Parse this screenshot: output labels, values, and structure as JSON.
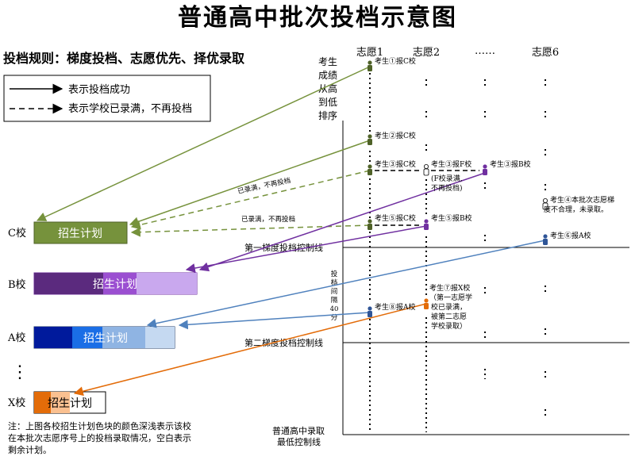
{
  "title": "普通高中批次投档示意图",
  "rules": "投档规则：梯度投档、志愿优先、择优录取",
  "legend": {
    "solid": "表示投档成功",
    "dashed": "表示学校已录满，不再投档"
  },
  "headers": {
    "choice1": "志愿1",
    "choice2": "志愿2",
    "ellipsis": "……",
    "choice6": "志愿6"
  },
  "score_axis_label": [
    "考生",
    "成绩",
    "从高",
    "到低",
    "排序"
  ],
  "interval_label": [
    "投",
    "档",
    "间",
    "隔",
    "40",
    "分"
  ],
  "schools": {
    "c": "C校",
    "b": "B校",
    "a": "A校",
    "dots": "⋮",
    "x": "X校"
  },
  "plan_label": "招生计划",
  "students": {
    "s1": "考生①报C校",
    "s2": "考生②报C校",
    "s3a": "考生③报C校",
    "s3b": "考生③报F校",
    "s3b_note1": "(F校录满,",
    "s3b_note2": "不再投档)",
    "s3c": "考生③报B校",
    "s4_1": "考生④本批次志愿梯",
    "s4_2": "度不合理，未录取。",
    "s5a": "考生⑤报C校",
    "s5b": "考生⑤报B校",
    "s6": "考生⑥报A校",
    "s7_1": "考生⑦报X校",
    "s7_2": "（第一志愿学",
    "s7_3": "校已录满，",
    "s7_4": "被第二志愿",
    "s7_5": "学校录取）",
    "s8": "考生⑧报A校"
  },
  "arrow_labels": {
    "full1": "已录满，不再投档",
    "full2": "已录满，不再投档"
  },
  "control_lines": {
    "first": "第一梯度投档控制线",
    "second": "第二梯度投档控制线",
    "bottom1": "普通高中录取",
    "bottom2": "最低控制线"
  },
  "note": [
    "注：上图各校招生计划色块的颜色深浅表示该校",
    "在本批次志愿序号上的投档录取情况，空白表示",
    "剩余计划。"
  ],
  "colors": {
    "green": "#76923c",
    "purple": "#7030a0",
    "blue": "#4f81bd",
    "orange": "#e36c09"
  }
}
